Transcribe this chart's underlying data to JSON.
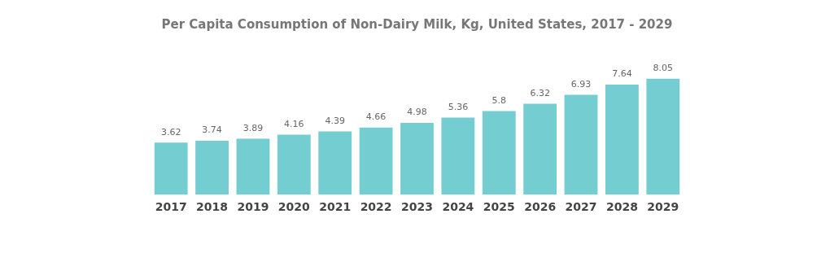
{
  "chart_data": {
    "type": "bar",
    "title": "Per Capita Consumption of Non-Dairy Milk, Kg, United States, 2017 - 2029",
    "categories": [
      "2017",
      "2018",
      "2019",
      "2020",
      "2021",
      "2022",
      "2023",
      "2024",
      "2025",
      "2026",
      "2027",
      "2028",
      "2029"
    ],
    "values": [
      3.62,
      3.74,
      3.89,
      4.16,
      4.39,
      4.66,
      4.98,
      5.36,
      5.8,
      6.32,
      6.93,
      7.64,
      8.05
    ],
    "color": "#74cdd1",
    "data_labels": true,
    "grid": false,
    "legend": false
  }
}
